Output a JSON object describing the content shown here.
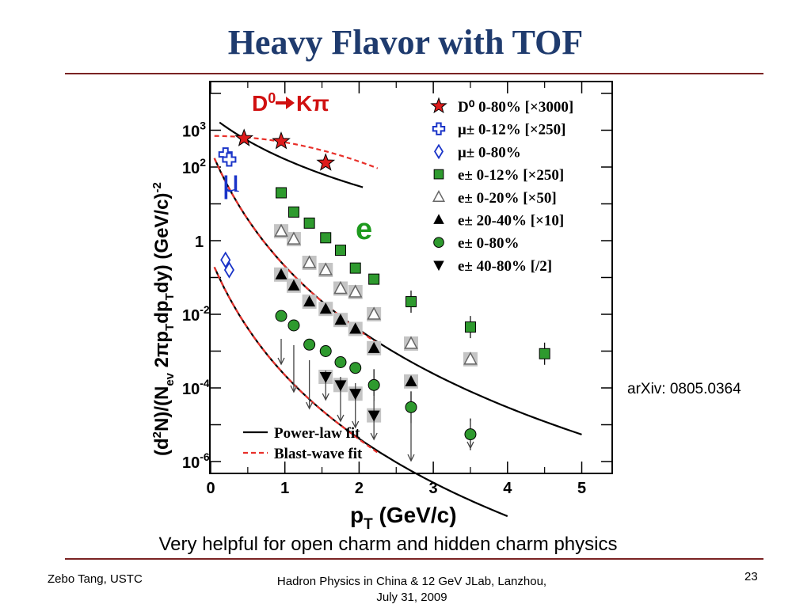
{
  "slide": {
    "title": "Heavy Flavor with TOF",
    "reference": "arXiv: 0805.0364",
    "caption": "Very helpful for open charm and hidden charm physics",
    "footer_left": "Zebo Tang, USTC",
    "footer_center_line1": "Hadron Physics in China & 12 GeV JLab, Lanzhou,",
    "footer_center_line2": "July 31, 2009",
    "page_number": "23"
  },
  "chart_data": {
    "type": "scatter",
    "xlabel": "p",
    "xlabel_sub": "T",
    "xlabel_unit": " (GeV/c)",
    "ylabel": "(d²N)/(N_ev 2πp_T dp_T dy) (GeV/c)^-2",
    "yscale": "log",
    "xlim": [
      0,
      5.4
    ],
    "ylim": [
      5e-07,
      20000
    ],
    "x_ticks": [
      "0",
      "1",
      "2",
      "3",
      "4",
      "5"
    ],
    "y_ticks": [
      {
        "value": 1000,
        "mant": "10",
        "exp": "3"
      },
      {
        "value": 100,
        "mant": "10",
        "exp": "2"
      },
      {
        "value": 1,
        "mant": "1",
        "exp": ""
      },
      {
        "value": 0.01,
        "mant": "10",
        "exp": "-2"
      },
      {
        "value": 0.0001,
        "mant": "10",
        "exp": "-4"
      },
      {
        "value": 1e-06,
        "mant": "10",
        "exp": "-6"
      }
    ],
    "annotations": {
      "d0_label": "D",
      "d0_sup": "0",
      "d0_rest": "Kπ",
      "mu_label": "μ",
      "e_label": "e"
    },
    "colors": {
      "d0": "#dd1c1c",
      "mu": "#1a34c8",
      "green": "#2e9a2e",
      "annot_red": "#d01010",
      "annot_green": "#1e9a1e"
    },
    "series": [
      {
        "key": "d0",
        "name": "D⁰ 0-80% [×3000]",
        "marker": "star",
        "x": [
          0.45,
          0.95,
          1.55
        ],
        "y": [
          600,
          500,
          130
        ]
      },
      {
        "key": "mu1",
        "name": "μ± 0-12% [×250]",
        "marker": "cross",
        "x": [
          0.2,
          0.25
        ],
        "y": [
          220,
          160
        ]
      },
      {
        "key": "mu2",
        "name": "μ± 0-80%",
        "marker": "diamond",
        "x": [
          0.2,
          0.25
        ],
        "y": [
          0.3,
          0.16
        ]
      },
      {
        "key": "e1",
        "name": "e± 0-12% [×250]",
        "marker": "square",
        "x": [
          0.95,
          1.12,
          1.33,
          1.55,
          1.75,
          1.95,
          2.2,
          2.7,
          3.5,
          4.5
        ],
        "y": [
          20,
          6,
          3,
          1.2,
          0.55,
          0.18,
          0.09,
          0.022,
          0.0045,
          0.00085
        ]
      },
      {
        "key": "e2",
        "name": "e± 0-20% [×50]",
        "marker": "triangle-open",
        "x": [
          0.95,
          1.12,
          1.33,
          1.55,
          1.75,
          1.95,
          2.2,
          2.7,
          3.5
        ],
        "y": [
          1.8,
          1.1,
          0.25,
          0.16,
          0.05,
          0.04,
          0.01,
          0.0016,
          0.0006
        ]
      },
      {
        "key": "e3",
        "name": "e± 20-40% [×10]",
        "marker": "triangle",
        "x": [
          0.95,
          1.12,
          1.33,
          1.55,
          1.75,
          1.95,
          2.2,
          2.7
        ],
        "y": [
          0.12,
          0.06,
          0.022,
          0.014,
          0.007,
          0.004,
          0.0012,
          0.00015
        ]
      },
      {
        "key": "e4",
        "name": "e± 0-80%",
        "marker": "circle",
        "x": [
          0.95,
          1.12,
          1.33,
          1.55,
          1.75,
          1.95,
          2.2,
          2.7,
          3.5
        ],
        "y": [
          0.009,
          0.005,
          0.0015,
          0.001,
          0.0005,
          0.00035,
          0.00012,
          3e-05,
          5.5e-06
        ]
      },
      {
        "key": "e5",
        "name": "e± 40-80% [/2]",
        "marker": "triangle-down",
        "x": [
          1.55,
          1.75,
          1.95,
          2.2
        ],
        "y": [
          0.0002,
          0.00012,
          7e-05,
          1.8e-05
        ]
      }
    ],
    "legend_extra": [
      "Power-law fit",
      "Blast-wave fit"
    ],
    "legend_placement": "top-right",
    "grid": false
  }
}
